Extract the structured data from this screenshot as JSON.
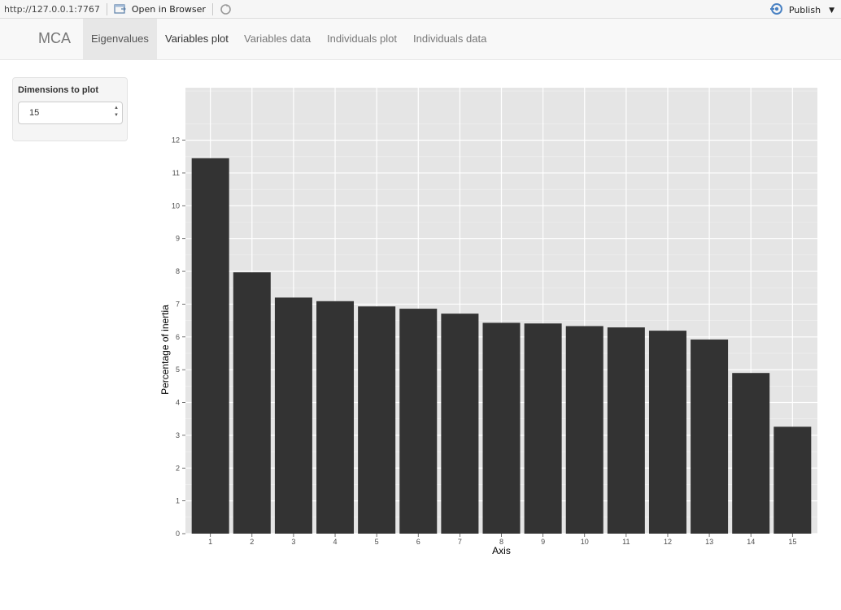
{
  "viewer": {
    "url": "http://127.0.0.1:7767",
    "open_label": "Open in Browser",
    "publish_label": "Publish"
  },
  "navbar": {
    "brand": "MCA",
    "tabs": [
      {
        "label": "Eigenvalues",
        "active": true
      },
      {
        "label": "Variables plot"
      },
      {
        "label": "Variables data"
      },
      {
        "label": "Individuals plot"
      },
      {
        "label": "Individuals data"
      }
    ]
  },
  "sidebar": {
    "label": "Dimensions to plot",
    "input_value": "15"
  },
  "colors": {
    "panel": "#e5e5e5",
    "bar": "#333333",
    "grid": "#ffffff"
  },
  "chart_data": {
    "type": "bar",
    "categories": [
      "1",
      "2",
      "3",
      "4",
      "5",
      "6",
      "7",
      "8",
      "9",
      "10",
      "11",
      "12",
      "13",
      "14",
      "15"
    ],
    "values": [
      11.45,
      7.97,
      7.2,
      7.09,
      6.93,
      6.86,
      6.71,
      6.43,
      6.41,
      6.33,
      6.29,
      6.19,
      5.92,
      4.9,
      3.26
    ],
    "xlabel": "Axis",
    "ylabel": "Percentage of inertia",
    "ylim": [
      0,
      13.6
    ],
    "yticks": [
      "0",
      "1",
      "2",
      "3",
      "4",
      "5",
      "6",
      "7",
      "8",
      "9",
      "10",
      "11",
      "12"
    ],
    "grid": true
  }
}
